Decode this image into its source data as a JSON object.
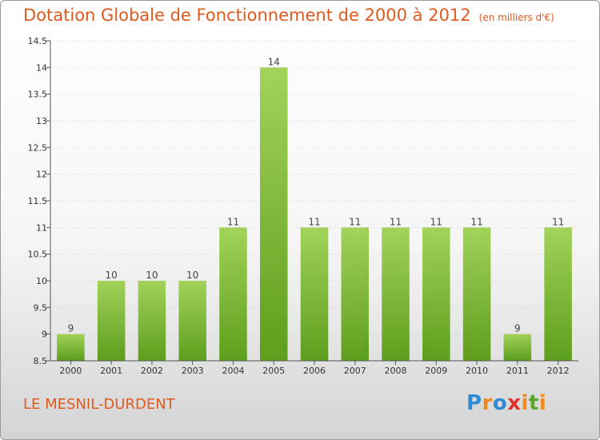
{
  "header": {
    "title": "Dotation Globale de Fonctionnement de 2000 à 2012",
    "subtitle": "(en milliers d'€)"
  },
  "footer": {
    "commune": "LE MESNIL-DURDENT",
    "logo": {
      "name": "Proxiti",
      "letters": [
        "P",
        "r",
        "o",
        "x",
        "i",
        "t",
        "i"
      ],
      "colors": [
        "#2e8bd6",
        "#f08a1c",
        "#2e8bd6",
        "#e0312a",
        "#f08a1c",
        "#58a82b",
        "#f08a1c"
      ]
    }
  },
  "colors": {
    "title": "#e05a1e",
    "bar_light": "#a2d35a",
    "bar_dark": "#5d9e1c",
    "grid": "#cfcfcf",
    "axis": "#555555"
  },
  "chart_data": {
    "type": "bar",
    "title": "Dotation Globale de Fonctionnement de 2000 à 2012",
    "subtitle": "(en milliers d'€)",
    "categories": [
      "2000",
      "2001",
      "2002",
      "2003",
      "2004",
      "2005",
      "2006",
      "2007",
      "2008",
      "2009",
      "2010",
      "2011",
      "2012"
    ],
    "values": [
      9,
      10,
      10,
      10,
      11,
      14,
      11,
      11,
      11,
      11,
      11,
      9,
      11
    ],
    "data_labels": [
      "9",
      "10",
      "10",
      "10",
      "11",
      "14",
      "11",
      "11",
      "11",
      "11",
      "11",
      "9",
      "11"
    ],
    "ylim": [
      8.5,
      14.5
    ],
    "yticks": [
      8.5,
      9,
      9.5,
      10,
      10.5,
      11,
      11.5,
      12,
      12.5,
      13,
      13.5,
      14,
      14.5
    ],
    "ytick_labels": [
      "8.5",
      "9",
      "9.5",
      "10",
      "10.5",
      "11",
      "11.5",
      "12",
      "12.5",
      "13",
      "13.5",
      "14",
      "14.5"
    ],
    "grid": true,
    "xlabel": "",
    "ylabel": ""
  }
}
